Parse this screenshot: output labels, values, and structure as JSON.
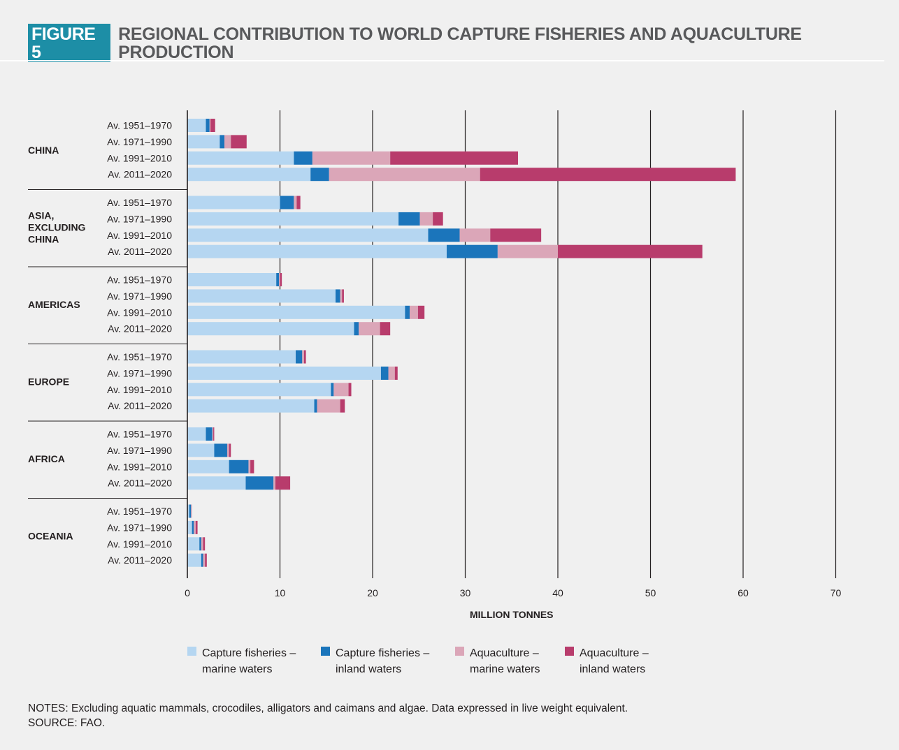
{
  "figure": {
    "badge": "FIGURE 5",
    "title": "REGIONAL CONTRIBUTION TO WORLD CAPTURE FISHERIES AND AQUACULTURE PRODUCTION"
  },
  "colors": {
    "badge": "#1d8ea6",
    "capture_marine": "#b5d6f1",
    "capture_inland": "#1b75bb",
    "aquaculture_marine": "#dba6b8",
    "aquaculture_inland": "#b83c6c"
  },
  "chart_data": {
    "type": "bar",
    "orientation": "horizontal",
    "stacked": true,
    "xlabel": "MILLION TONNES",
    "xlim": [
      0,
      70
    ],
    "xticks": [
      0,
      10,
      20,
      30,
      40,
      50,
      60,
      70
    ],
    "grid": true,
    "legend_position": "bottom",
    "series": [
      {
        "name": "Capture fisheries –\nmarine waters",
        "color": "#b5d6f1"
      },
      {
        "name": "Capture fisheries –\ninland waters",
        "color": "#1b75bb"
      },
      {
        "name": "Aquaculture –\nmarine waters",
        "color": "#dba6b8"
      },
      {
        "name": "Aquaculture –\ninland waters",
        "color": "#b83c6c"
      }
    ],
    "groups": [
      {
        "region": "CHINA",
        "bars": [
          {
            "period": "Av. 1951–1970",
            "values": [
              2.0,
              0.4,
              0.1,
              0.5
            ]
          },
          {
            "period": "Av. 1971–1990",
            "values": [
              3.5,
              0.5,
              0.7,
              1.7
            ]
          },
          {
            "period": "Av. 1991–2010",
            "values": [
              11.5,
              2.0,
              8.4,
              13.8
            ]
          },
          {
            "period": "Av. 2011–2020",
            "values": [
              13.3,
              2.0,
              16.3,
              27.6
            ]
          }
        ]
      },
      {
        "region": "ASIA,\nEXCLUDING\nCHINA",
        "bars": [
          {
            "period": "Av. 1951–1970",
            "values": [
              10.0,
              1.5,
              0.3,
              0.4
            ]
          },
          {
            "period": "Av. 1971–1990",
            "values": [
              22.8,
              2.3,
              1.4,
              1.1
            ]
          },
          {
            "period": "Av. 1991–2010",
            "values": [
              26.0,
              3.4,
              3.3,
              5.5
            ]
          },
          {
            "period": "Av. 2011–2020",
            "values": [
              28.0,
              5.5,
              6.5,
              15.6
            ]
          }
        ]
      },
      {
        "region": "AMERICAS",
        "bars": [
          {
            "period": "Av. 1951–1970",
            "values": [
              9.6,
              0.3,
              0.1,
              0.2
            ]
          },
          {
            "period": "Av. 1971–1990",
            "values": [
              16.0,
              0.5,
              0.2,
              0.2
            ]
          },
          {
            "period": "Av. 1991–2010",
            "values": [
              23.5,
              0.5,
              0.9,
              0.7
            ]
          },
          {
            "period": "Av. 2011–2020",
            "values": [
              18.0,
              0.5,
              2.3,
              1.1
            ]
          }
        ]
      },
      {
        "region": "EUROPE",
        "bars": [
          {
            "period": "Av. 1951–1970",
            "values": [
              11.7,
              0.7,
              0.2,
              0.2
            ]
          },
          {
            "period": "Av. 1971–1990",
            "values": [
              20.9,
              0.8,
              0.7,
              0.3
            ]
          },
          {
            "period": "Av. 1991–2010",
            "values": [
              15.5,
              0.3,
              1.6,
              0.3
            ]
          },
          {
            "period": "Av. 2011–2020",
            "values": [
              13.7,
              0.3,
              2.5,
              0.5
            ]
          }
        ]
      },
      {
        "region": "AFRICA",
        "bars": [
          {
            "period": "Av. 1951–1970",
            "values": [
              2.0,
              0.7,
              0.1,
              0.1
            ]
          },
          {
            "period": "Av. 1971–1990",
            "values": [
              2.9,
              1.4,
              0.2,
              0.2
            ]
          },
          {
            "period": "Av. 1991–2010",
            "values": [
              4.5,
              2.1,
              0.2,
              0.4
            ]
          },
          {
            "period": "Av. 2011–2020",
            "values": [
              6.3,
              3.0,
              0.2,
              1.6
            ]
          }
        ]
      },
      {
        "region": "OCEANIA",
        "bars": [
          {
            "period": "Av. 1951–1970",
            "values": [
              0.2,
              0.2,
              0.1,
              0.0
            ]
          },
          {
            "period": "Av. 1971–1990",
            "values": [
              0.5,
              0.2,
              0.2,
              0.2
            ]
          },
          {
            "period": "Av. 1991–2010",
            "values": [
              1.3,
              0.2,
              0.2,
              0.2
            ]
          },
          {
            "period": "Av. 2011–2020",
            "values": [
              1.5,
              0.2,
              0.2,
              0.2
            ]
          }
        ]
      }
    ]
  },
  "notes": {
    "line1": "NOTES: Excluding aquatic mammals, crocodiles, alligators and caimans and algae. Data expressed in live weight equivalent.",
    "line2": "SOURCE: FAO."
  }
}
